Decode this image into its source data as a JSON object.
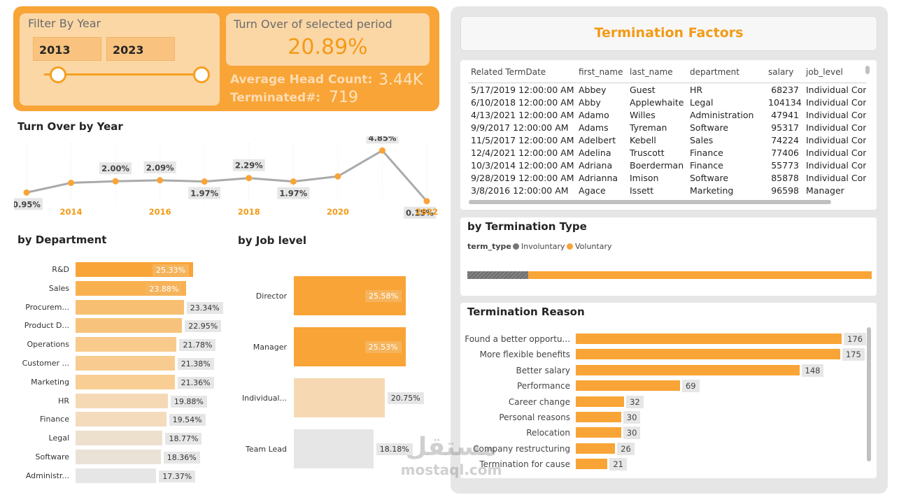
{
  "header": {
    "filter_title": "Filter By Year",
    "year_from": "2013",
    "year_to": "2023",
    "turnover_label": "Turn Over of selected period",
    "turnover_value": "20.89%",
    "avg_headcount_label": "Average Head Count:",
    "avg_headcount_value": "3.44K",
    "terminated_label": "Terminated#:",
    "terminated_value": "719"
  },
  "colors": {
    "accent": "#f9a436",
    "accent_dark": "#f39a16",
    "grey": "#e6e6e6",
    "involuntary": "#767676"
  },
  "turnover_by_year": {
    "title": "Turn Over by Year",
    "chart_data": {
      "type": "line",
      "x": [
        2013,
        2014,
        2015,
        2016,
        2017,
        2018,
        2019,
        2020,
        2021,
        2022
      ],
      "values": [
        0.95,
        1.85,
        2.0,
        2.09,
        1.97,
        2.29,
        1.97,
        2.45,
        4.85,
        0.15
      ],
      "point_labels": [
        "0.95%",
        "",
        "2.00%",
        "2.09%",
        "1.97%",
        "2.29%",
        "1.97%",
        "",
        "4.85%",
        "0.15%"
      ],
      "x_ticks": [
        "2014",
        "2016",
        "2018",
        "2020",
        "2022"
      ],
      "x_tick_values": [
        2014,
        2016,
        2018,
        2020,
        2022
      ]
    }
  },
  "by_department": {
    "title": "by Department",
    "chart_data": {
      "type": "bar",
      "categories": [
        "R&D",
        "Sales",
        "Procurem...",
        "Product D...",
        "Operations",
        "Customer ...",
        "Marketing",
        "HR",
        "Finance",
        "Legal",
        "Software",
        "Administr..."
      ],
      "values": [
        25.33,
        23.88,
        23.34,
        22.95,
        21.78,
        21.38,
        21.36,
        19.88,
        19.54,
        18.77,
        18.36,
        17.37
      ],
      "labels": [
        "25.33%",
        "23.88%",
        "23.34%",
        "22.95%",
        "21.78%",
        "21.38%",
        "21.36%",
        "19.88%",
        "19.54%",
        "18.77%",
        "18.36%",
        "17.37%"
      ],
      "colors": [
        "#f9a436",
        "#f9b150",
        "#f7bf72",
        "#f7c37c",
        "#f8ca8c",
        "#f8cc91",
        "#f8ce95",
        "#f5d9b5",
        "#f3dbbc",
        "#ede0cd",
        "#eae2d6",
        "#e6e6e6"
      ]
    }
  },
  "by_job_level": {
    "title": "by Job level",
    "chart_data": {
      "type": "bar",
      "categories": [
        "Director",
        "Manager",
        "Individual...",
        "Team Lead"
      ],
      "values": [
        25.58,
        25.53,
        20.75,
        18.18
      ],
      "labels": [
        "25.58%",
        "25.53%",
        "20.75%",
        "18.18%"
      ],
      "colors": [
        "#f9a436",
        "#f9a436",
        "#f6d9b3",
        "#e6e6e6"
      ]
    }
  },
  "termination_factors": {
    "title": "Termination Factors",
    "columns": [
      "Related TermDate",
      "first_name",
      "last_name",
      "department",
      "salary",
      "job_level"
    ],
    "rows": [
      [
        "5/17/2019 12:00:00 AM",
        "Abbey",
        "Guest",
        "HR",
        "68237",
        "Individual Con"
      ],
      [
        "6/10/2018 12:00:00 AM",
        "Abby",
        "Applewhaite",
        "Legal",
        "104134",
        "Individual Con"
      ],
      [
        "4/13/2021 12:00:00 AM",
        "Adamo",
        "Willes",
        "Administration",
        "47941",
        "Individual Con"
      ],
      [
        "9/9/2017 12:00:00 AM",
        "Adams",
        "Tyreman",
        "Software",
        "95317",
        "Individual Con"
      ],
      [
        "11/5/2017 12:00:00 AM",
        "Adelbert",
        "Kebell",
        "Sales",
        "74224",
        "Individual Con"
      ],
      [
        "12/4/2021 12:00:00 AM",
        "Adelina",
        "Truscott",
        "Finance",
        "77406",
        "Individual Con"
      ],
      [
        "10/3/2014 12:00:00 AM",
        "Adriana",
        "Boerderman",
        "Finance",
        "55773",
        "Individual Con"
      ],
      [
        "9/28/2019 12:00:00 AM",
        "Adrianna",
        "Imison",
        "Software",
        "85878",
        "Individual Con"
      ],
      [
        "3/8/2016 12:00:00 AM",
        "Agace",
        "Issett",
        "Marketing",
        "96598",
        "Manager"
      ]
    ]
  },
  "termination_type": {
    "title": "by Termination Type",
    "legend_title": "term_type",
    "legend": [
      "Involuntary",
      "Voluntary"
    ],
    "chart_data": {
      "type": "bar",
      "categories": [
        "Involuntary",
        "Voluntary"
      ],
      "values": [
        102,
        576
      ]
    }
  },
  "termination_reason": {
    "title": "Termination Reason",
    "chart_data": {
      "type": "bar",
      "categories": [
        "Found a better opportu...",
        "More flexible benefits",
        "Better salary",
        "Performance",
        "Career change",
        "Personal reasons",
        "Relocation",
        "Company restructuring",
        "Termination for cause"
      ],
      "values": [
        176,
        175,
        148,
        69,
        32,
        30,
        30,
        26,
        21
      ]
    }
  },
  "watermark": {
    "arabic": "مستقل",
    "latin": "mostaql.com"
  }
}
